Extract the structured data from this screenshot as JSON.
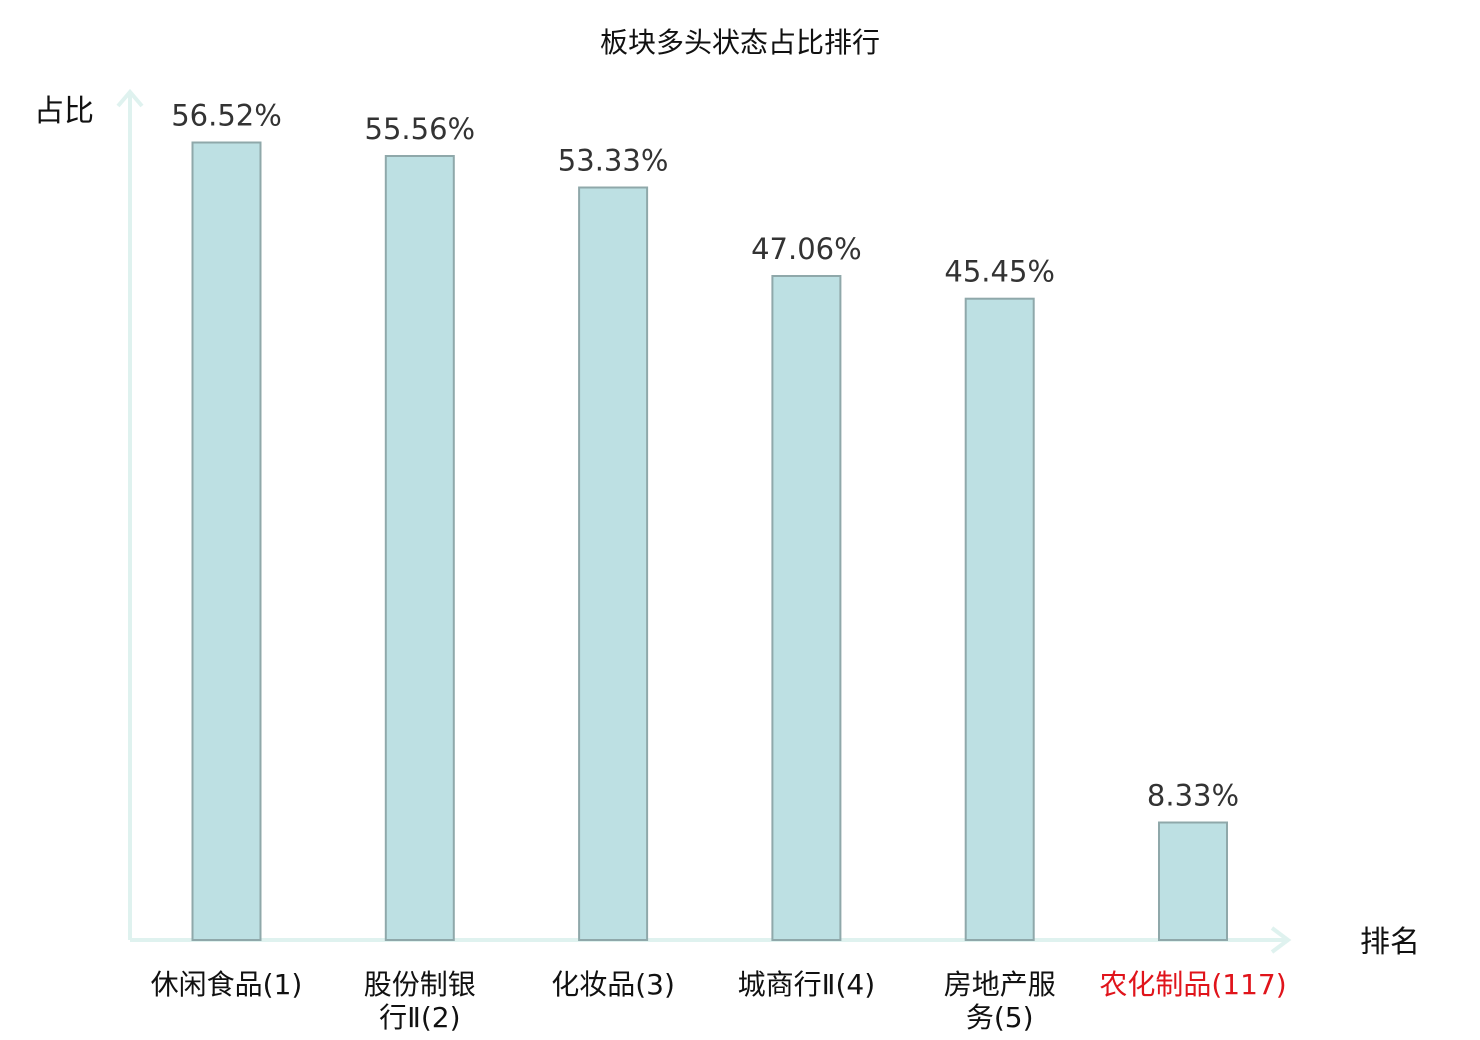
{
  "chart_data": {
    "type": "bar",
    "title": "板块多头状态占比排行",
    "ylabel": "占比",
    "xlabel": "排名",
    "ylim": [
      0,
      60
    ],
    "grid": false,
    "categories": [
      {
        "name": "休闲食品",
        "rank": "(1)"
      },
      {
        "name": "股份制银行Ⅱ",
        "rank": "(2)"
      },
      {
        "name": "化妆品",
        "rank": "(3)"
      },
      {
        "name": "城商行Ⅱ",
        "rank": "(4)"
      },
      {
        "name": "房地产服务",
        "rank": "(5)"
      },
      {
        "name": "农化制品",
        "rank": "(117)"
      }
    ],
    "values": [
      56.52,
      55.56,
      53.33,
      47.06,
      45.45,
      8.33
    ],
    "value_labels": [
      "56.52%",
      "55.56%",
      "53.33%",
      "47.06%",
      "45.45%",
      "8.33%"
    ],
    "highlight_index": 5
  },
  "colors": {
    "bar_fill": "#bde0e3",
    "bar_stroke": "#8fa8aa",
    "axis": "#dff2ef",
    "highlight_text": "#e0141b",
    "text": "#111111",
    "value_text": "#333333"
  }
}
